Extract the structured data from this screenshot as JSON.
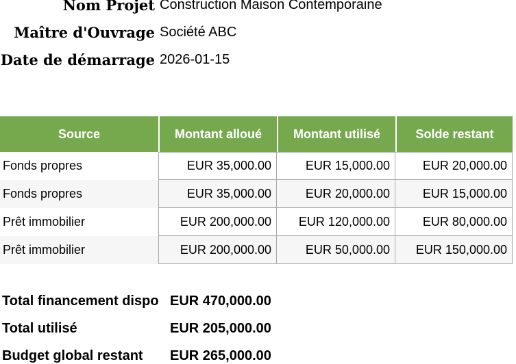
{
  "info": {
    "rows": [
      {
        "label": "Nom Projet",
        "value": "Construction Maison Contemporaine"
      },
      {
        "label": "Maître d'Ouvrage",
        "value": "Société ABC"
      },
      {
        "label": "Date de démarrage",
        "value": "2026-01-15"
      }
    ]
  },
  "table": {
    "columns": [
      "Source",
      "Montant alloué",
      "Montant utilisé",
      "Solde restant"
    ],
    "rows": [
      {
        "source": "Fonds propres",
        "alloue": "EUR 35,000.00",
        "utilise": "EUR 15,000.00",
        "solde": "EUR 20,000.00"
      },
      {
        "source": "Fonds propres",
        "alloue": "EUR 35,000.00",
        "utilise": "EUR 20,000.00",
        "solde": "EUR 15,000.00"
      },
      {
        "source": "Prêt immobilier",
        "alloue": "EUR 200,000.00",
        "utilise": "EUR 120,000.00",
        "solde": "EUR 80,000.00"
      },
      {
        "source": "Prêt immobilier",
        "alloue": "EUR 200,000.00",
        "utilise": "EUR 50,000.00",
        "solde": "EUR 150,000.00"
      }
    ]
  },
  "totals": {
    "rows": [
      {
        "label": "Total financement dispo",
        "value": "EUR 470,000.00"
      },
      {
        "label": "Total utilisé",
        "value": "EUR 205,000.00"
      },
      {
        "label": "Budget global restant",
        "value": "EUR 265,000.00"
      }
    ]
  },
  "colors": {
    "header_bg": "#76a94e",
    "header_text": "#ffffff",
    "alt_row_bg": "#f6f6f6",
    "border": "#a9a9a9"
  }
}
